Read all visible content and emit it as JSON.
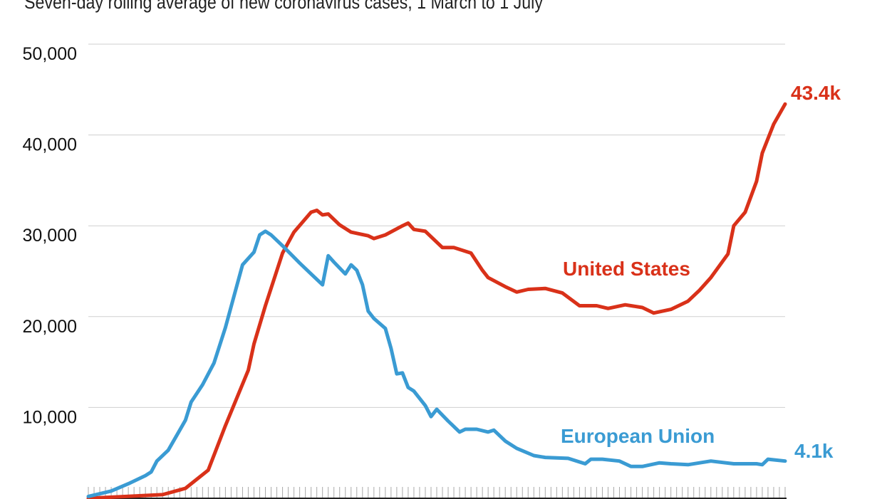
{
  "chart_data": {
    "type": "line",
    "title": "Seven-day rolling average of new coronavirus cases, 1 March to 1 July",
    "xlabel": "",
    "ylabel": "",
    "xlim": [
      "Mar 1",
      "Jul 1"
    ],
    "ylim": [
      0,
      50000
    ],
    "yticks": [
      10000,
      20000,
      30000,
      40000,
      50000
    ],
    "ytick_labels": [
      "10,000",
      "20,000",
      "30,000",
      "40,000",
      "50,000"
    ],
    "grid": true,
    "x_ticks": "daily",
    "series": [
      {
        "name": "United States",
        "color": "#d93119",
        "end_label": "43.4k",
        "x": [
          "Mar 1",
          "Mar 14",
          "Mar 18",
          "Mar 22",
          "Mar 25",
          "Mar 29",
          "Mar 30",
          "Apr 1",
          "Apr 4",
          "Apr 6",
          "Apr 9",
          "Apr 10",
          "Apr 11",
          "Apr 12",
          "Apr 14",
          "Apr 16",
          "Apr 19",
          "Apr 20",
          "Apr 22",
          "Apr 25",
          "Apr 26",
          "Apr 27",
          "Apr 29",
          "May 1",
          "May 2",
          "May 4",
          "May 7",
          "May 9",
          "May 10",
          "May 13",
          "May 15",
          "May 17",
          "May 20",
          "May 23",
          "May 26",
          "May 29",
          "May 31",
          "Jun 3",
          "Jun 6",
          "Jun 8",
          "Jun 11",
          "Jun 14",
          "Jun 16",
          "Jun 18",
          "Jun 21",
          "Jun 22",
          "Jun 24",
          "Jun 26",
          "Jun 27",
          "Jun 29",
          "Jul 1"
        ],
        "y": [
          0,
          400,
          1100,
          3100,
          8000,
          14100,
          17000,
          21200,
          27000,
          29300,
          31500,
          31700,
          31200,
          31300,
          30100,
          29300,
          28900,
          28600,
          29000,
          30000,
          30300,
          29600,
          29400,
          28200,
          27600,
          27600,
          27000,
          25100,
          24300,
          23300,
          22700,
          23000,
          23100,
          22600,
          21200,
          21200,
          20900,
          21300,
          21000,
          20400,
          20800,
          21700,
          22900,
          24300,
          26900,
          30000,
          31500,
          34900,
          38000,
          41200,
          43400
        ]
      },
      {
        "name": "European Union",
        "color": "#3a9bd3",
        "end_label": "4.1k",
        "x": [
          "Mar 1",
          "Mar 5",
          "Mar 8",
          "Mar 11",
          "Mar 12",
          "Mar 13",
          "Mar 15",
          "Mar 18",
          "Mar 19",
          "Mar 21",
          "Mar 23",
          "Mar 25",
          "Mar 28",
          "Mar 30",
          "Mar 31",
          "Apr 1",
          "Apr 2",
          "Apr 4",
          "Apr 7",
          "Apr 9",
          "Apr 11",
          "Apr 12",
          "Apr 13",
          "Apr 15",
          "Apr 16",
          "Apr 17",
          "Apr 18",
          "Apr 19",
          "Apr 20",
          "Apr 22",
          "Apr 23",
          "Apr 24",
          "Apr 25",
          "Apr 26",
          "Apr 27",
          "Apr 29",
          "Apr 30",
          "May 1",
          "May 3",
          "May 5",
          "May 6",
          "May 8",
          "May 10",
          "May 11",
          "May 13",
          "May 15",
          "May 18",
          "May 20",
          "May 24",
          "May 27",
          "May 28",
          "May 30",
          "Jun 2",
          "Jun 4",
          "Jun 6",
          "Jun 9",
          "Jun 11",
          "Jun 14",
          "Jun 18",
          "Jun 22",
          "Jun 26",
          "Jun 27",
          "Jun 28",
          "Jul 1"
        ],
        "y": [
          200,
          800,
          1600,
          2500,
          2900,
          4100,
          5300,
          8600,
          10600,
          12500,
          14900,
          18800,
          25700,
          27100,
          29000,
          29400,
          29000,
          27800,
          25900,
          24700,
          23500,
          26700,
          26000,
          24700,
          25700,
          25100,
          23500,
          20600,
          19800,
          18700,
          16500,
          13700,
          13800,
          12200,
          11800,
          10200,
          9000,
          9800,
          8500,
          7300,
          7600,
          7600,
          7300,
          7500,
          6300,
          5500,
          4700,
          4500,
          4400,
          3800,
          4300,
          4300,
          4100,
          3500,
          3500,
          3900,
          3800,
          3700,
          4100,
          3800,
          3800,
          3700,
          4300,
          4100
        ]
      }
    ]
  }
}
